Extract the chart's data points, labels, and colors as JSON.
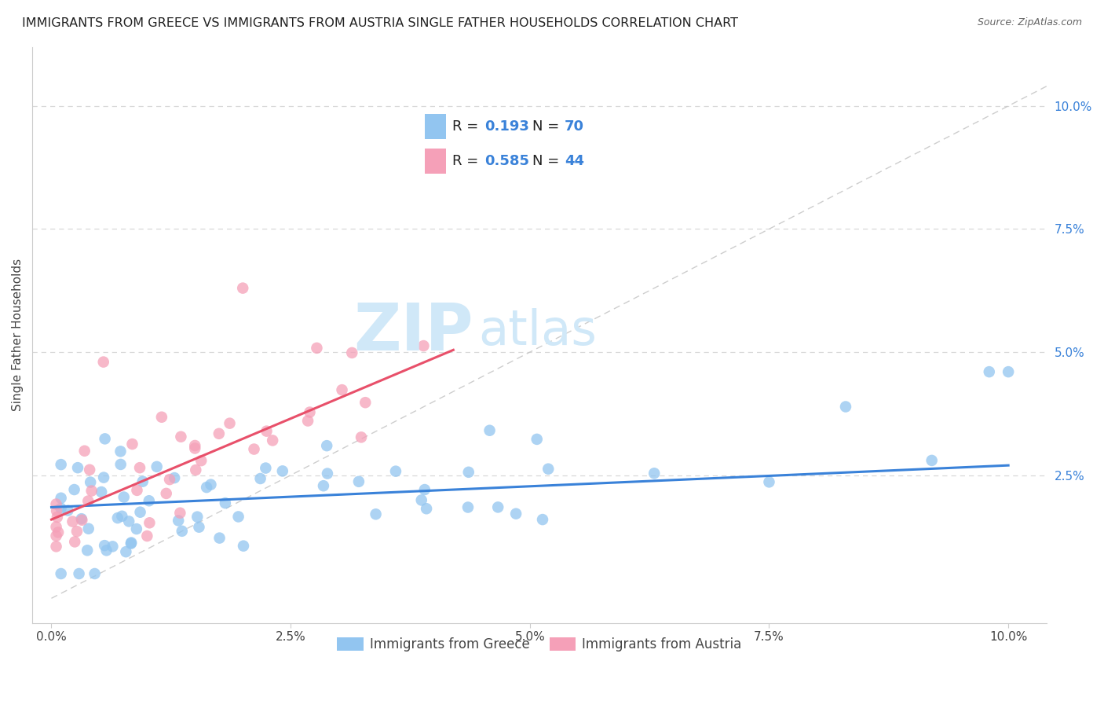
{
  "title": "IMMIGRANTS FROM GREECE VS IMMIGRANTS FROM AUSTRIA SINGLE FATHER HOUSEHOLDS CORRELATION CHART",
  "source": "Source: ZipAtlas.com",
  "ylabel": "Single Father Households",
  "x_tick_labels": [
    "0.0%",
    "2.5%",
    "5.0%",
    "7.5%",
    "10.0%"
  ],
  "x_tick_values": [
    0.0,
    0.025,
    0.05,
    0.075,
    0.1
  ],
  "y_tick_labels": [
    "2.5%",
    "5.0%",
    "7.5%",
    "10.0%"
  ],
  "y_tick_values": [
    0.025,
    0.05,
    0.075,
    0.1
  ],
  "xlim": [
    -0.002,
    0.104
  ],
  "ylim": [
    -0.005,
    0.112
  ],
  "greece_color": "#92c5f0",
  "austria_color": "#f5a0b8",
  "greece_line_color": "#3a82d9",
  "austria_line_color": "#e8506a",
  "diag_line_color": "#c8c8c8",
  "R_greece": 0.193,
  "N_greece": 70,
  "R_austria": 0.585,
  "N_austria": 44,
  "legend_label_greece": "Immigrants from Greece",
  "legend_label_austria": "Immigrants from Austria",
  "watermark_zip": "ZIP",
  "watermark_atlas": "atlas",
  "background_color": "#ffffff",
  "grid_color": "#d8d8d8",
  "title_fontsize": 11.5,
  "axis_label_fontsize": 11,
  "tick_fontsize": 11,
  "source_fontsize": 9,
  "watermark_color": "#d0e8f8",
  "watermark_fontsize": 60,
  "greece_line_intercept": 0.0185,
  "greece_line_slope": 0.085,
  "austria_line_intercept": 0.016,
  "austria_line_slope": 0.82
}
